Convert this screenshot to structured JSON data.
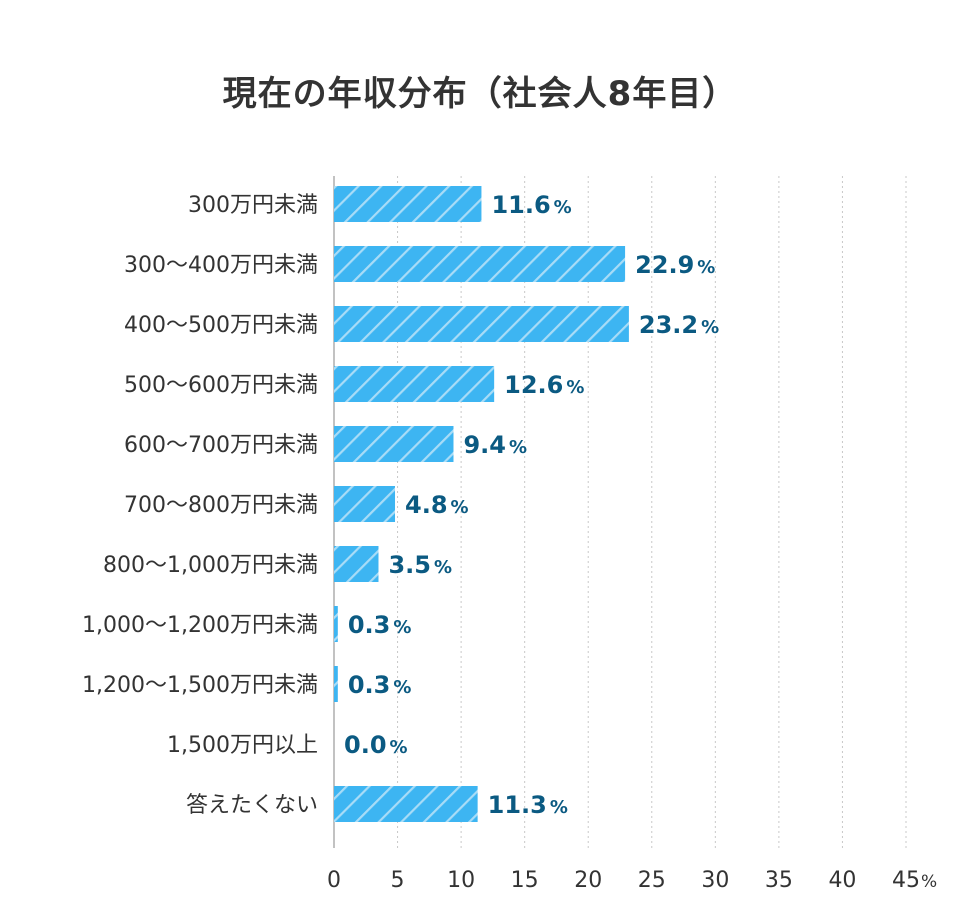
{
  "chart_data": {
    "type": "bar",
    "orientation": "horizontal",
    "title": "現在の年収分布（社会人8年目）",
    "categories": [
      "300万円未満",
      "300〜400万円未満",
      "400〜500万円未満",
      "500〜600万円未満",
      "600〜700万円未満",
      "700〜800万円未満",
      "800〜1,000万円未満",
      "1,000〜1,200万円未満",
      "1,200〜1,500万円未満",
      "1,500万円以上",
      "答えたくない"
    ],
    "values": [
      11.6,
      22.9,
      23.2,
      12.6,
      9.4,
      4.8,
      3.5,
      0.3,
      0.3,
      0.0,
      11.3
    ],
    "value_labels": [
      "11.6",
      "22.9",
      "23.2",
      "12.6",
      "9.4",
      "4.8",
      "3.5",
      "0.3",
      "0.3",
      "0.0",
      "11.3"
    ],
    "value_unit": "%",
    "xlim": [
      0,
      45
    ],
    "x_ticks": [
      "0",
      "5",
      "10",
      "15",
      "20",
      "25",
      "30",
      "35",
      "40",
      "45"
    ],
    "x_tick_unit": "%",
    "grid": "vertical-dotted",
    "colors": {
      "bar": "#3db5f2",
      "bar_stripe": "#a8dcf7",
      "value_text": "#0b5a82",
      "text": "#333333",
      "grid": "#c8c8c8",
      "axis": "#999999"
    }
  }
}
